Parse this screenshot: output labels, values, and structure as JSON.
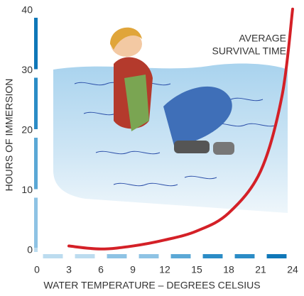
{
  "chart_data": {
    "type": "line",
    "annotation": [
      "AVERAGE",
      "SURVIVAL TIME"
    ],
    "ylabel": "HOURS OF IMMERSION",
    "xlabel": "WATER TEMPERATURE – DEGREES CELSIUS",
    "x": [
      3,
      6,
      9,
      12,
      15,
      18,
      21,
      23,
      24
    ],
    "series": [
      {
        "color": "#d42027",
        "values": [
          1,
          0.5,
          1,
          2,
          3.5,
          6.5,
          13.5,
          26,
          40.5
        ]
      }
    ],
    "xlim": [
      0,
      24
    ],
    "xticks": [
      0,
      3,
      6,
      9,
      12,
      15,
      18,
      21,
      24
    ],
    "ylim": [
      0,
      40
    ],
    "yticks": [
      0,
      10,
      20,
      30,
      40
    ]
  }
}
